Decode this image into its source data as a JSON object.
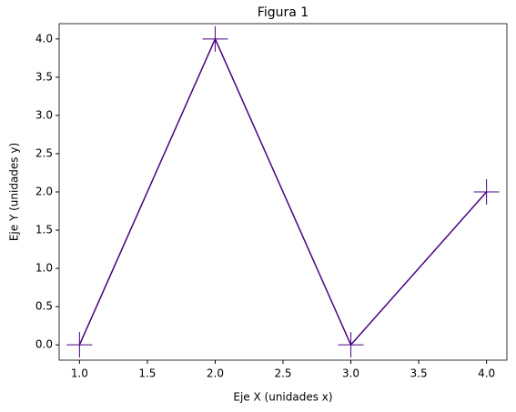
{
  "chart_data": {
    "type": "line",
    "title": "Figura 1",
    "xlabel": "Eje X (unidades x)",
    "ylabel": "Eje Y (unidades y)",
    "x": [
      1,
      2,
      3,
      4
    ],
    "series": [
      {
        "color": "#4b0082",
        "marker": "+",
        "values": [
          0,
          4,
          0,
          2
        ]
      }
    ],
    "xlim": [
      0.85,
      4.15
    ],
    "xticks": [
      {
        "value": 1,
        "label": "1.0"
      },
      {
        "value": 1.5,
        "label": "1.5"
      },
      {
        "value": 2,
        "label": "2.0"
      },
      {
        "value": 2.5,
        "label": "2.5"
      },
      {
        "value": 3,
        "label": "3.0"
      },
      {
        "value": 3.5,
        "label": "3.5"
      },
      {
        "value": 4,
        "label": "4.0"
      }
    ],
    "ylim": [
      -0.2,
      4.2
    ],
    "yticks": [
      {
        "value": 0,
        "label": "0.0"
      },
      {
        "value": 0.5,
        "label": "0.5"
      },
      {
        "value": 1,
        "label": "1.0"
      },
      {
        "value": 1.5,
        "label": "1.5"
      },
      {
        "value": 2,
        "label": "2.0"
      },
      {
        "value": 2.5,
        "label": "2.5"
      },
      {
        "value": 3,
        "label": "3.0"
      },
      {
        "value": 3.5,
        "label": "3.5"
      },
      {
        "value": 4,
        "label": "4.0"
      }
    ],
    "grid": false
  }
}
